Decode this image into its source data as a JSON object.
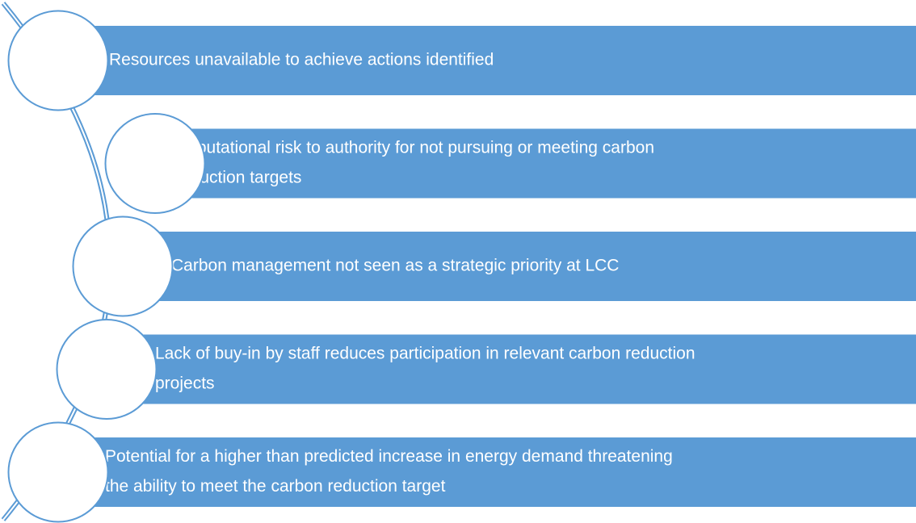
{
  "items": [
    {
      "lines": [
        "Resources unavailable to achieve actions identified"
      ]
    },
    {
      "lines": [
        "Reputational risk to authority for not pursuing or meeting carbon",
        "reduction targets"
      ]
    },
    {
      "lines": [
        "Carbon management not seen as a strategic priority at LCC"
      ]
    },
    {
      "lines": [
        "Lack of buy-in by staff reduces participation in relevant carbon reduction",
        "projects"
      ]
    },
    {
      "lines": [
        "Potential for a higher than predicted increase in energy demand threatening",
        "the ability to meet the carbon reduction target"
      ]
    }
  ]
}
